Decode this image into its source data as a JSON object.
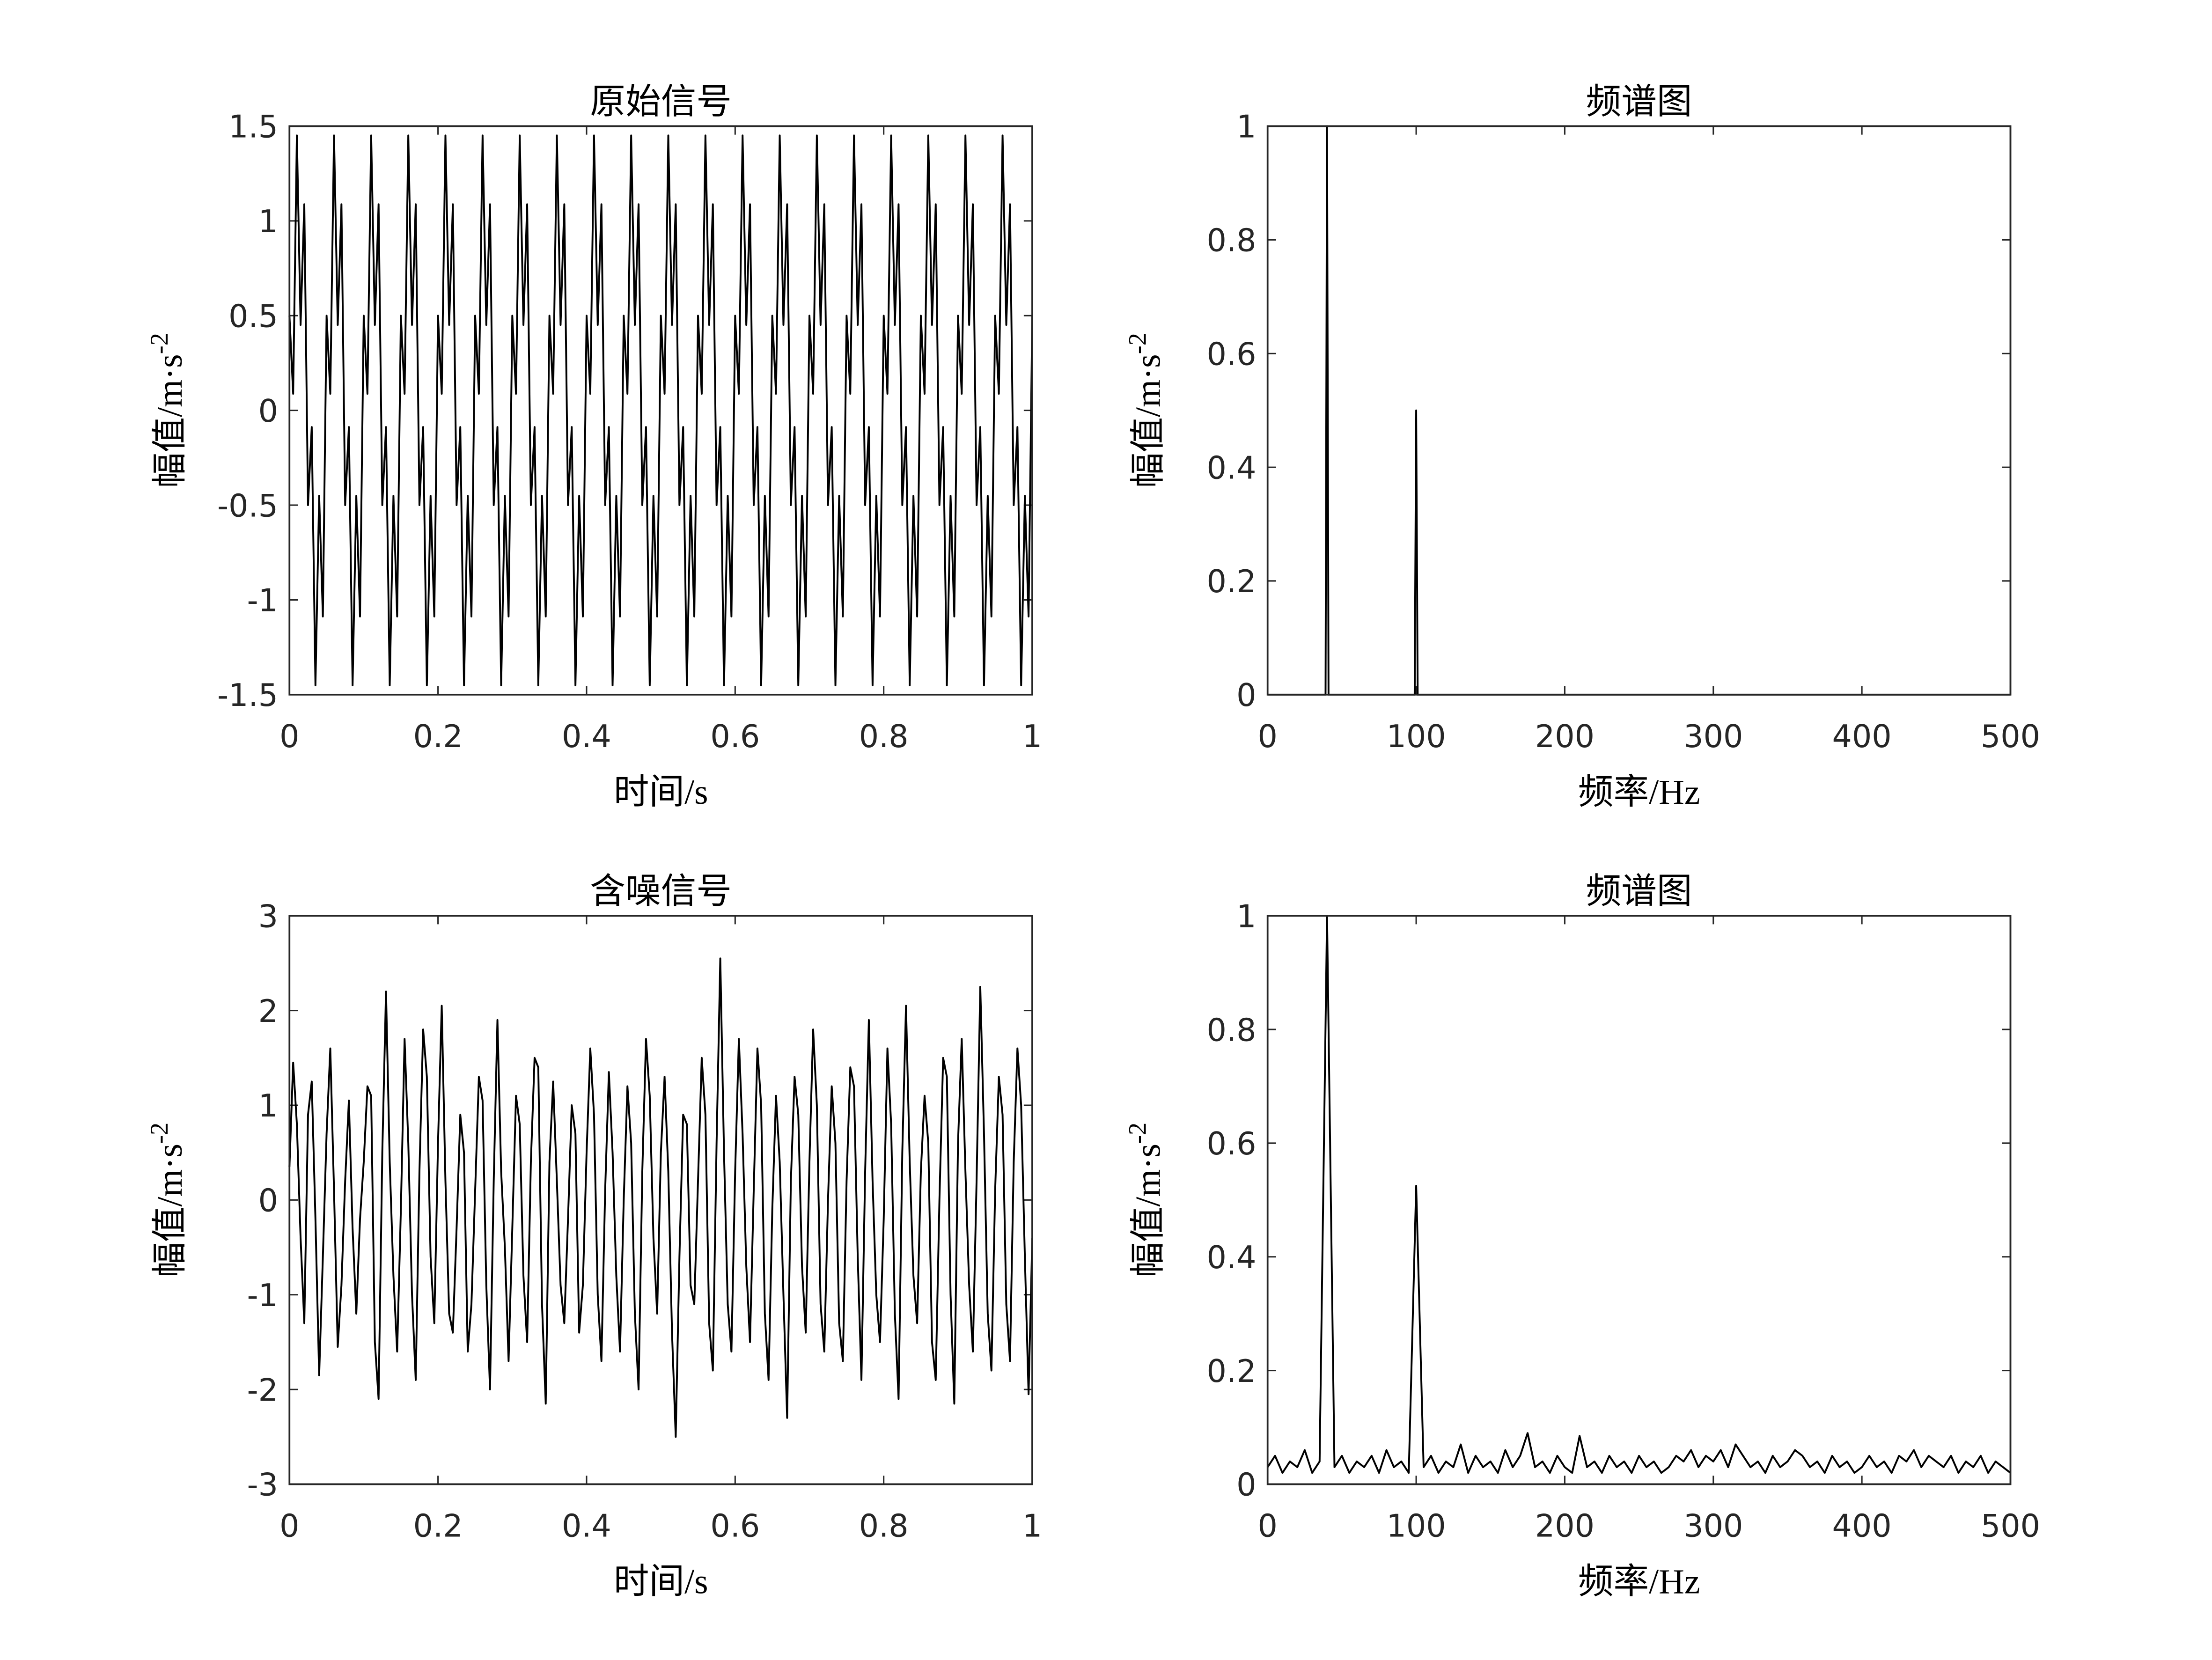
{
  "chart_data": [
    {
      "type": "line",
      "title": "原始信号",
      "xlabel": "时间/s",
      "ylabel": "幅值/m·s",
      "ylabel_sup": "-2",
      "color": "#000000",
      "xlim": [
        0,
        1
      ],
      "ylim": [
        -1.5,
        1.5
      ],
      "xticks": [
        0,
        0.2,
        0.4,
        0.6,
        0.8,
        1
      ],
      "yticks": [
        -1.5,
        -1,
        -0.5,
        0,
        0.5,
        1,
        1.5
      ],
      "x": [
        0,
        0.005,
        0.01,
        0.015,
        0.02,
        0.025,
        0.03,
        0.035,
        0.04,
        0.045,
        0.05,
        0.055,
        0.06,
        0.065,
        0.07,
        0.075,
        0.08,
        0.085,
        0.09,
        0.095,
        0.1,
        0.105,
        0.11,
        0.115,
        0.12,
        0.125,
        0.13,
        0.135,
        0.14,
        0.145,
        0.15,
        0.155,
        0.16,
        0.165,
        0.17,
        0.175,
        0.18,
        0.185,
        0.19,
        0.195,
        0.2,
        0.205,
        0.21,
        0.215,
        0.22,
        0.225,
        0.23,
        0.235,
        0.24,
        0.245,
        0.25,
        0.255,
        0.26,
        0.265,
        0.27,
        0.275,
        0.28,
        0.285,
        0.29,
        0.295,
        0.3,
        0.305,
        0.31,
        0.315,
        0.32,
        0.325,
        0.33,
        0.335,
        0.34,
        0.345,
        0.35,
        0.355,
        0.36,
        0.365,
        0.37,
        0.375,
        0.38,
        0.385,
        0.39,
        0.395,
        0.4,
        0.405,
        0.41,
        0.415,
        0.42,
        0.425,
        0.43,
        0.435,
        0.44,
        0.445,
        0.45,
        0.455,
        0.46,
        0.465,
        0.47,
        0.475,
        0.48,
        0.485,
        0.49,
        0.495,
        0.5,
        0.505,
        0.51,
        0.515,
        0.52,
        0.525,
        0.53,
        0.535,
        0.54,
        0.545,
        0.55,
        0.555,
        0.56,
        0.565,
        0.57,
        0.575,
        0.58,
        0.585,
        0.59,
        0.595,
        0.6,
        0.605,
        0.61,
        0.615,
        0.62,
        0.625,
        0.63,
        0.635,
        0.64,
        0.645,
        0.65,
        0.655,
        0.66,
        0.665,
        0.67,
        0.675,
        0.68,
        0.685,
        0.69,
        0.695,
        0.7,
        0.705,
        0.71,
        0.715,
        0.72,
        0.725,
        0.73,
        0.735,
        0.74,
        0.745,
        0.75,
        0.755,
        0.76,
        0.765,
        0.77,
        0.775,
        0.78,
        0.785,
        0.79,
        0.795,
        0.8,
        0.805,
        0.81,
        0.815,
        0.82,
        0.825,
        0.83,
        0.835,
        0.84,
        0.845,
        0.85,
        0.855,
        0.86,
        0.865,
        0.87,
        0.875,
        0.88,
        0.885,
        0.89,
        0.895,
        0.9,
        0.905,
        0.91,
        0.915,
        0.92,
        0.925,
        0.93,
        0.935,
        0.94,
        0.945,
        0.95,
        0.955,
        0.96,
        0.965,
        0.97,
        0.975,
        0.98,
        0.985,
        0.99,
        0.995,
        1
      ],
      "values": [
        0.5,
        0.0878,
        1.4511,
        0.4511,
        1.0878,
        -0.5,
        -0.0878,
        -1.4511,
        -0.4511,
        -1.0878,
        0.5,
        0.0878,
        1.4511,
        0.4511,
        1.0878,
        -0.5,
        -0.0878,
        -1.4511,
        -0.4511,
        -1.0878,
        0.5,
        0.0878,
        1.4511,
        0.4511,
        1.0878,
        -0.5,
        -0.0878,
        -1.4511,
        -0.4511,
        -1.0878,
        0.5,
        0.0878,
        1.4511,
        0.4511,
        1.0878,
        -0.5,
        -0.0878,
        -1.4511,
        -0.4511,
        -1.0878,
        0.5,
        0.0878,
        1.4511,
        0.4511,
        1.0878,
        -0.5,
        -0.0878,
        -1.4511,
        -0.4511,
        -1.0878,
        0.5,
        0.0878,
        1.4511,
        0.4511,
        1.0878,
        -0.5,
        -0.0878,
        -1.4511,
        -0.4511,
        -1.0878,
        0.5,
        0.0878,
        1.4511,
        0.4511,
        1.0878,
        -0.5,
        -0.0878,
        -1.4511,
        -0.4511,
        -1.0878,
        0.5,
        0.0878,
        1.4511,
        0.4511,
        1.0878,
        -0.5,
        -0.0878,
        -1.4511,
        -0.4511,
        -1.0878,
        0.5,
        0.0878,
        1.4511,
        0.4511,
        1.0878,
        -0.5,
        -0.0878,
        -1.4511,
        -0.4511,
        -1.0878,
        0.5,
        0.0878,
        1.4511,
        0.4511,
        1.0878,
        -0.5,
        -0.0878,
        -1.4511,
        -0.4511,
        -1.0878,
        0.5,
        0.0878,
        1.4511,
        0.4511,
        1.0878,
        -0.5,
        -0.0878,
        -1.4511,
        -0.4511,
        -1.0878,
        0.5,
        0.0878,
        1.4511,
        0.4511,
        1.0878,
        -0.5,
        -0.0878,
        -1.4511,
        -0.4511,
        -1.0878,
        0.5,
        0.0878,
        1.4511,
        0.4511,
        1.0878,
        -0.5,
        -0.0878,
        -1.4511,
        -0.4511,
        -1.0878,
        0.5,
        0.0878,
        1.4511,
        0.4511,
        1.0878,
        -0.5,
        -0.0878,
        -1.4511,
        -0.4511,
        -1.0878,
        0.5,
        0.0878,
        1.4511,
        0.4511,
        1.0878,
        -0.5,
        -0.0878,
        -1.4511,
        -0.4511,
        -1.0878,
        0.5,
        0.0878,
        1.4511,
        0.4511,
        1.0878,
        -0.5,
        -0.0878,
        -1.4511,
        -0.4511,
        -1.0878,
        0.5,
        0.0878,
        1.4511,
        0.4511,
        1.0878,
        -0.5,
        -0.0878,
        -1.4511,
        -0.4511,
        -1.0878,
        0.5,
        0.0878,
        1.4511,
        0.4511,
        1.0878,
        -0.5,
        -0.0878,
        -1.4511,
        -0.4511,
        -1.0878,
        0.5,
        0.0878,
        1.4511,
        0.4511,
        1.0878,
        -0.5,
        -0.0878,
        -1.4511,
        -0.4511,
        -1.0878,
        0.5,
        0.0878,
        1.4511,
        0.4511,
        1.0878,
        -0.5,
        -0.0878,
        -1.4511,
        -0.4511,
        -1.0878,
        0.5
      ]
    },
    {
      "type": "line",
      "title": "频谱图",
      "xlabel": "频率/Hz",
      "ylabel": "幅值/m·s",
      "ylabel_sup": "-2",
      "color": "#000000",
      "xlim": [
        0,
        500
      ],
      "ylim": [
        0,
        1
      ],
      "xticks": [
        0,
        100,
        200,
        300,
        400,
        500
      ],
      "yticks": [
        0,
        0.2,
        0.4,
        0.6,
        0.8,
        1
      ],
      "x": [
        0,
        39,
        40,
        41,
        99,
        100,
        101,
        500
      ],
      "values": [
        0,
        0,
        1,
        0,
        0,
        0.5,
        0,
        0
      ]
    },
    {
      "type": "line",
      "title": "含噪信号",
      "xlabel": "时间/s",
      "ylabel": "幅值/m·s",
      "ylabel_sup": "-2",
      "color": "#000000",
      "xlim": [
        0,
        1
      ],
      "ylim": [
        -3,
        3
      ],
      "xticks": [
        0,
        0.2,
        0.4,
        0.6,
        0.8,
        1
      ],
      "yticks": [
        -3,
        -2,
        -1,
        0,
        1,
        2,
        3
      ],
      "x": [
        0,
        0.005,
        0.01,
        0.015,
        0.02,
        0.025,
        0.03,
        0.035,
        0.04,
        0.045,
        0.05,
        0.055,
        0.06,
        0.065,
        0.07,
        0.075,
        0.08,
        0.085,
        0.09,
        0.095,
        0.1,
        0.105,
        0.11,
        0.115,
        0.12,
        0.125,
        0.13,
        0.135,
        0.14,
        0.145,
        0.15,
        0.155,
        0.16,
        0.165,
        0.17,
        0.175,
        0.18,
        0.185,
        0.19,
        0.195,
        0.2,
        0.205,
        0.21,
        0.215,
        0.22,
        0.225,
        0.23,
        0.235,
        0.24,
        0.245,
        0.25,
        0.255,
        0.26,
        0.265,
        0.27,
        0.275,
        0.28,
        0.285,
        0.29,
        0.295,
        0.3,
        0.305,
        0.31,
        0.315,
        0.32,
        0.325,
        0.33,
        0.335,
        0.34,
        0.345,
        0.35,
        0.355,
        0.36,
        0.365,
        0.37,
        0.375,
        0.38,
        0.385,
        0.39,
        0.395,
        0.4,
        0.405,
        0.41,
        0.415,
        0.42,
        0.425,
        0.43,
        0.435,
        0.44,
        0.445,
        0.45,
        0.455,
        0.46,
        0.465,
        0.47,
        0.475,
        0.48,
        0.485,
        0.49,
        0.495,
        0.5,
        0.505,
        0.51,
        0.515,
        0.52,
        0.525,
        0.53,
        0.535,
        0.54,
        0.545,
        0.55,
        0.555,
        0.56,
        0.565,
        0.57,
        0.575,
        0.58,
        0.585,
        0.59,
        0.595,
        0.6,
        0.605,
        0.61,
        0.615,
        0.62,
        0.625,
        0.63,
        0.635,
        0.64,
        0.645,
        0.65,
        0.655,
        0.66,
        0.665,
        0.67,
        0.675,
        0.68,
        0.685,
        0.69,
        0.695,
        0.7,
        0.705,
        0.71,
        0.715,
        0.72,
        0.725,
        0.73,
        0.735,
        0.74,
        0.745,
        0.75,
        0.755,
        0.76,
        0.765,
        0.77,
        0.775,
        0.78,
        0.785,
        0.79,
        0.795,
        0.8,
        0.805,
        0.81,
        0.815,
        0.82,
        0.825,
        0.83,
        0.835,
        0.84,
        0.845,
        0.85,
        0.855,
        0.86,
        0.865,
        0.87,
        0.875,
        0.88,
        0.885,
        0.89,
        0.895,
        0.9,
        0.905,
        0.91,
        0.915,
        0.92,
        0.925,
        0.93,
        0.935,
        0.94,
        0.945,
        0.95,
        0.955,
        0.96,
        0.965,
        0.97,
        0.975,
        0.98,
        0.985,
        0.99,
        0.995,
        1
      ],
      "values": [
        0.35,
        1.45,
        0.8,
        -0.4,
        -1.3,
        0.9,
        1.25,
        -0.2,
        -1.85,
        -0.6,
        0.7,
        1.6,
        0.1,
        -1.55,
        -0.9,
        0.2,
        1.05,
        -0.3,
        -1.2,
        -0.2,
        0.4,
        1.2,
        1.1,
        -1.5,
        -2.1,
        0.5,
        2.2,
        0.4,
        -0.8,
        -1.6,
        -0.1,
        1.7,
        0.6,
        -1.0,
        -1.9,
        0.3,
        1.8,
        1.3,
        -0.6,
        -1.3,
        0.6,
        2.05,
        0.2,
        -1.2,
        -1.4,
        -0.3,
        0.9,
        0.5,
        -1.6,
        -1.1,
        0.1,
        1.3,
        1.05,
        -0.9,
        -2.0,
        0.2,
        1.9,
        0.3,
        -0.5,
        -1.7,
        -0.3,
        1.1,
        0.8,
        -0.8,
        -1.5,
        0.4,
        1.5,
        1.4,
        -1.1,
        -2.15,
        0.4,
        1.25,
        0.2,
        -0.9,
        -1.3,
        -0.2,
        1.0,
        0.7,
        -1.4,
        -0.9,
        0.5,
        1.6,
        0.9,
        -1.0,
        -1.7,
        0.1,
        1.35,
        0.5,
        -0.8,
        -1.6,
        0.0,
        1.2,
        0.6,
        -1.2,
        -2.0,
        0.3,
        1.7,
        1.1,
        -0.4,
        -1.2,
        0.5,
        1.3,
        0.3,
        -1.4,
        -2.5,
        -0.6,
        0.9,
        0.8,
        -0.9,
        -1.1,
        0.2,
        1.5,
        0.9,
        -1.3,
        -1.8,
        0.6,
        2.55,
        0.5,
        -1.1,
        -1.6,
        0.3,
        1.7,
        0.7,
        -0.7,
        -1.5,
        0.1,
        1.6,
        1.0,
        -1.2,
        -1.9,
        -0.1,
        1.1,
        0.4,
        -1.0,
        -2.3,
        0.2,
        1.3,
        0.9,
        -0.7,
        -1.4,
        0.4,
        1.8,
        1.0,
        -1.1,
        -1.6,
        0.0,
        1.2,
        0.6,
        -1.3,
        -1.7,
        0.2,
        1.4,
        1.2,
        -0.6,
        -1.9,
        0.3,
        1.9,
        0.2,
        -1.0,
        -1.5,
        -0.2,
        1.6,
        0.8,
        -1.2,
        -2.1,
        0.5,
        2.05,
        0.4,
        -0.8,
        -1.3,
        0.3,
        1.1,
        0.6,
        -1.5,
        -1.9,
        0.0,
        1.5,
        1.3,
        -1.0,
        -2.15,
        0.6,
        1.7,
        0.3,
        -0.9,
        -1.6,
        0.2,
        2.25,
        0.7,
        -1.2,
        -1.8,
        0.1,
        1.3,
        0.9,
        -1.1,
        -1.7,
        0.4,
        1.6,
        1.0,
        -0.6,
        -2.05,
        -0.4
      ]
    },
    {
      "type": "line",
      "title": "频谱图",
      "xlabel": "频率/Hz",
      "ylabel": "幅值/m·s",
      "ylabel_sup": "-2",
      "color": "#000000",
      "xlim": [
        0,
        500
      ],
      "ylim": [
        0,
        1
      ],
      "xticks": [
        0,
        100,
        200,
        300,
        400,
        500
      ],
      "yticks": [
        0,
        0.2,
        0.4,
        0.6,
        0.8,
        1
      ],
      "x": [
        0,
        5,
        10,
        15,
        20,
        25,
        30,
        35,
        40,
        45,
        50,
        55,
        60,
        65,
        70,
        75,
        80,
        85,
        90,
        95,
        100,
        105,
        110,
        115,
        120,
        125,
        130,
        135,
        140,
        145,
        150,
        155,
        160,
        165,
        170,
        175,
        180,
        185,
        190,
        195,
        200,
        205,
        210,
        215,
        220,
        225,
        230,
        235,
        240,
        245,
        250,
        255,
        260,
        265,
        270,
        275,
        280,
        285,
        290,
        295,
        300,
        305,
        310,
        315,
        320,
        325,
        330,
        335,
        340,
        345,
        350,
        355,
        360,
        365,
        370,
        375,
        380,
        385,
        390,
        395,
        400,
        405,
        410,
        415,
        420,
        425,
        430,
        435,
        440,
        445,
        450,
        455,
        460,
        465,
        470,
        475,
        480,
        485,
        490,
        495,
        500
      ],
      "values": [
        0.03,
        0.05,
        0.02,
        0.04,
        0.03,
        0.06,
        0.02,
        0.04,
        1,
        0.03,
        0.05,
        0.02,
        0.04,
        0.03,
        0.05,
        0.02,
        0.06,
        0.03,
        0.04,
        0.02,
        0.525,
        0.03,
        0.05,
        0.02,
        0.04,
        0.03,
        0.07,
        0.02,
        0.05,
        0.03,
        0.04,
        0.02,
        0.06,
        0.03,
        0.05,
        0.09,
        0.03,
        0.04,
        0.02,
        0.05,
        0.03,
        0.02,
        0.085,
        0.03,
        0.04,
        0.02,
        0.05,
        0.03,
        0.04,
        0.02,
        0.05,
        0.03,
        0.04,
        0.02,
        0.03,
        0.05,
        0.04,
        0.06,
        0.03,
        0.05,
        0.04,
        0.06,
        0.03,
        0.07,
        0.05,
        0.03,
        0.04,
        0.02,
        0.05,
        0.03,
        0.04,
        0.06,
        0.05,
        0.03,
        0.04,
        0.02,
        0.05,
        0.03,
        0.04,
        0.02,
        0.03,
        0.05,
        0.03,
        0.04,
        0.02,
        0.05,
        0.04,
        0.06,
        0.03,
        0.05,
        0.04,
        0.03,
        0.05,
        0.02,
        0.04,
        0.03,
        0.05,
        0.02,
        0.04,
        0.03,
        0.02
      ]
    }
  ]
}
